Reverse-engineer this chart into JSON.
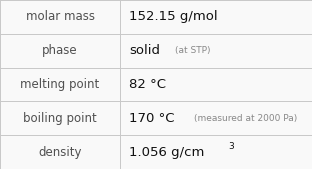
{
  "rows": [
    {
      "label": "molar mass",
      "main": "152.15 g/mol",
      "note": "",
      "sup": false
    },
    {
      "label": "phase",
      "main": "solid",
      "note": "(at STP)",
      "sup": false
    },
    {
      "label": "melting point",
      "main": "82 °C",
      "note": "",
      "sup": false
    },
    {
      "label": "boiling point",
      "main": "170 °C",
      "note": "(measured at 2000 Pa)",
      "sup": false
    },
    {
      "label": "density",
      "main": "1.056 g/cm",
      "note": "",
      "sup": true
    }
  ],
  "bg_color": "#f9f9f9",
  "border_color": "#c8c8c8",
  "label_color": "#505050",
  "main_color": "#111111",
  "note_color": "#888888",
  "label_fs": 8.5,
  "main_fs": 9.5,
  "note_fs": 6.5,
  "sup_fs": 6.5,
  "col_split": 0.385,
  "fig_w": 3.12,
  "fig_h": 1.69,
  "dpi": 100
}
